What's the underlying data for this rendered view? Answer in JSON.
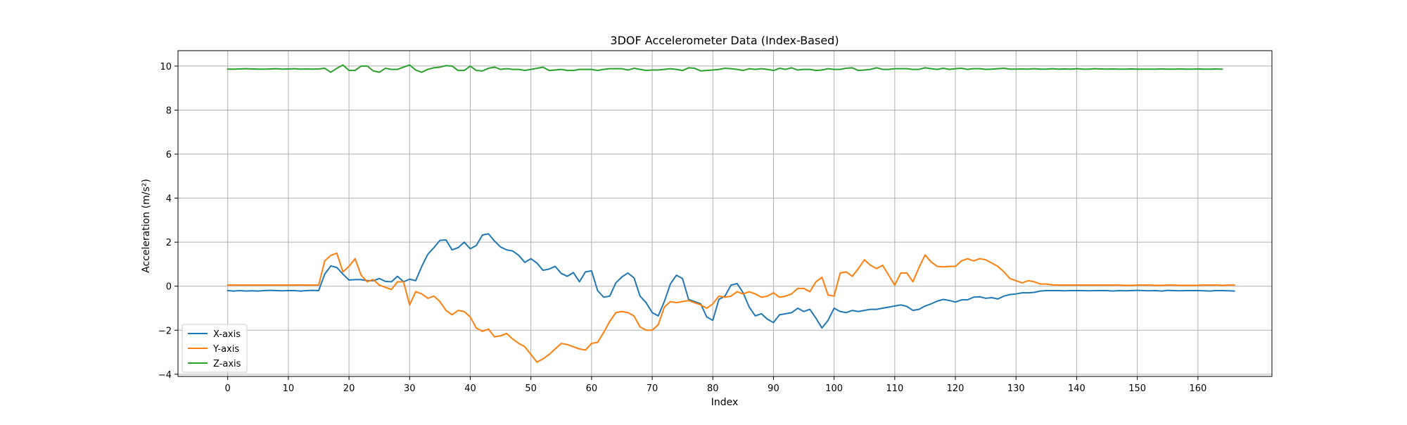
{
  "chart_data": {
    "type": "line",
    "title": "3DOF Accelerometer Data (Index-Based)",
    "xlabel": "Index",
    "ylabel": "Acceleration (m/s²)",
    "xlim": [
      -8.2,
      172.2
    ],
    "ylim": [
      -4.1,
      10.7
    ],
    "xticks": [
      0,
      10,
      20,
      30,
      40,
      50,
      60,
      70,
      80,
      90,
      100,
      110,
      120,
      130,
      140,
      150,
      160
    ],
    "yticks": [
      -4,
      -2,
      0,
      2,
      4,
      6,
      8,
      10
    ],
    "grid": true,
    "legend_position": "lower-left",
    "series": [
      {
        "name": "X-axis",
        "color": "#1f77b4",
        "values": [
          -0.2,
          -0.22,
          -0.2,
          -0.22,
          -0.21,
          -0.22,
          -0.2,
          -0.19,
          -0.2,
          -0.21,
          -0.2,
          -0.2,
          -0.22,
          -0.2,
          -0.19,
          -0.2,
          0.55,
          0.92,
          0.85,
          0.55,
          0.28,
          0.3,
          0.3,
          0.25,
          0.25,
          0.35,
          0.22,
          0.2,
          0.45,
          0.2,
          0.32,
          0.25,
          0.9,
          1.45,
          1.75,
          2.08,
          2.1,
          1.65,
          1.75,
          2.0,
          1.7,
          1.85,
          2.32,
          2.38,
          2.05,
          1.78,
          1.65,
          1.6,
          1.4,
          1.08,
          1.25,
          1.05,
          0.72,
          0.78,
          0.9,
          0.58,
          0.45,
          0.62,
          0.2,
          0.65,
          0.7,
          -0.2,
          -0.5,
          -0.45,
          0.15,
          0.42,
          0.6,
          0.38,
          -0.45,
          -0.75,
          -1.2,
          -1.35,
          -0.7,
          0.1,
          0.5,
          0.35,
          -0.6,
          -0.7,
          -0.8,
          -1.4,
          -1.55,
          -0.6,
          -0.45,
          0.05,
          0.12,
          -0.3,
          -0.95,
          -1.35,
          -1.25,
          -1.5,
          -1.65,
          -1.3,
          -1.25,
          -1.2,
          -1.0,
          -1.15,
          -1.05,
          -1.45,
          -1.9,
          -1.55,
          -1.0,
          -1.15,
          -1.2,
          -1.1,
          -1.15,
          -1.1,
          -1.05,
          -1.05,
          -1.0,
          -0.95,
          -0.9,
          -0.85,
          -0.92,
          -1.1,
          -1.05,
          -0.9,
          -0.8,
          -0.68,
          -0.6,
          -0.65,
          -0.72,
          -0.62,
          -0.62,
          -0.5,
          -0.48,
          -0.55,
          -0.52,
          -0.58,
          -0.45,
          -0.38,
          -0.35,
          -0.3,
          -0.3,
          -0.28,
          -0.22,
          -0.2,
          -0.2,
          -0.2,
          -0.21,
          -0.2,
          -0.2,
          -0.2,
          -0.21,
          -0.2,
          -0.2,
          -0.2,
          -0.22,
          -0.2,
          -0.21,
          -0.2,
          -0.19,
          -0.2,
          -0.21,
          -0.2,
          -0.22,
          -0.19,
          -0.2,
          -0.21,
          -0.2,
          -0.2,
          -0.2,
          -0.21,
          -0.22,
          -0.2,
          -0.2,
          -0.21,
          -0.22
        ]
      },
      {
        "name": "Y-axis",
        "color": "#ff7f0e",
        "values": [
          0.05,
          0.05,
          0.05,
          0.05,
          0.05,
          0.05,
          0.05,
          0.05,
          0.05,
          0.05,
          0.05,
          0.05,
          0.06,
          0.05,
          0.05,
          0.05,
          1.15,
          1.4,
          1.5,
          0.65,
          0.9,
          1.25,
          0.5,
          0.2,
          0.3,
          0.05,
          -0.05,
          -0.15,
          0.2,
          0.2,
          -0.85,
          -0.25,
          -0.35,
          -0.55,
          -0.45,
          -0.7,
          -1.1,
          -1.3,
          -1.1,
          -1.15,
          -1.4,
          -1.9,
          -2.05,
          -1.95,
          -2.3,
          -2.25,
          -2.15,
          -2.4,
          -2.6,
          -2.75,
          -3.1,
          -3.45,
          -3.3,
          -3.1,
          -2.85,
          -2.6,
          -2.65,
          -2.75,
          -2.85,
          -2.9,
          -2.6,
          -2.55,
          -2.1,
          -1.6,
          -1.2,
          -1.15,
          -1.2,
          -1.35,
          -1.85,
          -2.0,
          -2.0,
          -1.75,
          -0.95,
          -0.7,
          -0.75,
          -0.7,
          -0.65,
          -0.75,
          -0.85,
          -1.0,
          -0.8,
          -0.45,
          -0.5,
          -0.45,
          -0.25,
          -0.35,
          -0.25,
          -0.35,
          -0.5,
          -0.45,
          -0.3,
          -0.5,
          -0.45,
          -0.35,
          -0.1,
          -0.1,
          -0.25,
          0.2,
          0.4,
          -0.4,
          -0.45,
          0.6,
          0.65,
          0.45,
          0.8,
          1.2,
          0.95,
          0.8,
          0.95,
          0.5,
          0.05,
          0.6,
          0.6,
          0.2,
          0.85,
          1.42,
          1.1,
          0.9,
          0.88,
          0.9,
          0.9,
          1.15,
          1.25,
          1.15,
          1.25,
          1.2,
          1.05,
          0.9,
          0.65,
          0.35,
          0.25,
          0.15,
          0.25,
          0.2,
          0.1,
          0.1,
          0.06,
          0.05,
          0.05,
          0.05,
          0.05,
          0.05,
          0.05,
          0.05,
          0.05,
          0.05,
          0.05,
          0.05,
          0.04,
          0.04,
          0.05,
          0.05,
          0.05,
          0.04,
          0.04,
          0.05,
          0.05,
          0.04,
          0.04,
          0.04,
          0.04,
          0.05,
          0.05,
          0.05,
          0.04,
          0.05,
          0.05
        ]
      },
      {
        "name": "Z-axis",
        "color": "#2ca02c",
        "values": [
          9.86,
          9.86,
          9.87,
          9.88,
          9.87,
          9.86,
          9.86,
          9.87,
          9.88,
          9.86,
          9.87,
          9.88,
          9.86,
          9.87,
          9.86,
          9.87,
          9.9,
          9.72,
          9.9,
          10.05,
          9.8,
          9.8,
          10.0,
          10.0,
          9.78,
          9.72,
          9.9,
          9.85,
          9.85,
          9.95,
          10.05,
          9.82,
          9.72,
          9.85,
          9.92,
          9.95,
          10.02,
          10.0,
          9.8,
          9.8,
          10.0,
          9.8,
          9.78,
          9.9,
          9.95,
          9.85,
          9.88,
          9.85,
          9.85,
          9.8,
          9.85,
          9.9,
          9.95,
          9.8,
          9.82,
          9.85,
          9.8,
          9.8,
          9.85,
          9.85,
          9.85,
          9.8,
          9.85,
          9.88,
          9.88,
          9.88,
          9.82,
          9.9,
          9.85,
          9.8,
          9.82,
          9.82,
          9.85,
          9.88,
          9.85,
          9.8,
          9.92,
          9.9,
          9.78,
          9.8,
          9.82,
          9.85,
          9.9,
          9.88,
          9.85,
          9.8,
          9.88,
          9.85,
          9.88,
          9.85,
          9.8,
          9.9,
          9.85,
          9.92,
          9.82,
          9.85,
          9.85,
          9.8,
          9.82,
          9.88,
          9.85,
          9.85,
          9.9,
          9.92,
          9.8,
          9.82,
          9.85,
          9.92,
          9.85,
          9.85,
          9.88,
          9.88,
          9.88,
          9.85,
          9.85,
          9.92,
          9.88,
          9.85,
          9.9,
          9.85,
          9.88,
          9.9,
          9.85,
          9.88,
          9.88,
          9.85,
          9.86,
          9.88,
          9.9,
          9.86,
          9.86,
          9.87,
          9.86,
          9.88,
          9.86,
          9.86,
          9.88,
          9.86,
          9.87,
          9.86,
          9.88,
          9.86,
          9.86,
          9.88,
          9.87,
          9.86,
          9.87,
          9.86,
          9.86,
          9.87,
          9.86,
          9.86,
          9.86,
          9.86,
          9.87,
          9.86,
          9.86,
          9.87,
          9.86,
          9.86,
          9.87,
          9.86,
          9.86,
          9.87,
          9.86
        ]
      }
    ]
  }
}
